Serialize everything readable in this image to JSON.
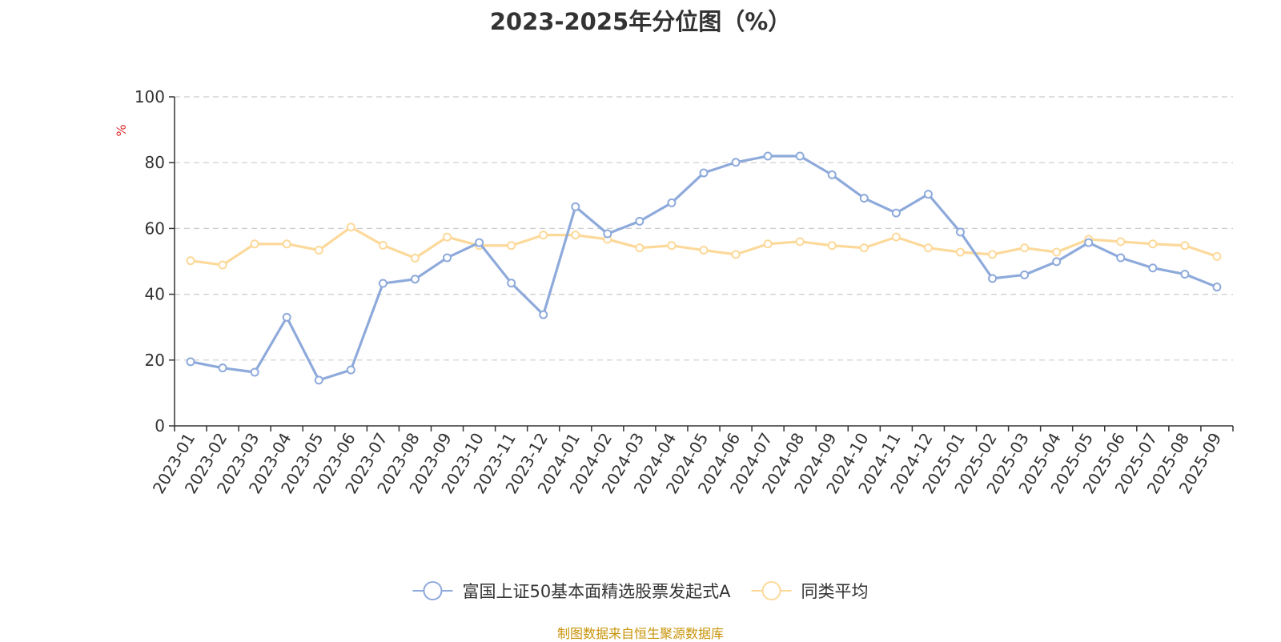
{
  "colors": {
    "series1": "#8eaadb",
    "series2": "#fcd99a",
    "unit": "#e03030",
    "source": "#c8940a",
    "grid": "#cccccc",
    "axis": "#333333"
  },
  "source_note": "制图数据来自恒生聚源数据库",
  "chart_data": {
    "type": "line",
    "title": "2023-2025年分位图（%）",
    "ylabel": "%",
    "xlabel": "",
    "ylim": [
      0,
      100
    ],
    "yticks": [
      0,
      20,
      40,
      60,
      80,
      100
    ],
    "grid": true,
    "legend_position": "bottom",
    "categories": [
      "2023-01",
      "2023-02",
      "2023-03",
      "2023-04",
      "2023-05",
      "2023-06",
      "2023-07",
      "2023-08",
      "2023-09",
      "2023-10",
      "2023-11",
      "2023-12",
      "2024-01",
      "2024-02",
      "2024-03",
      "2024-04",
      "2024-05",
      "2024-06",
      "2024-07",
      "2024-08",
      "2024-09",
      "2024-10",
      "2024-11",
      "2024-12",
      "2025-01",
      "2025-02",
      "2025-03",
      "2025-04",
      "2025-05",
      "2025-06",
      "2025-07",
      "2025-08",
      "2025-09"
    ],
    "series": [
      {
        "name": "富国上证50基本面精选股票发起式A",
        "color": "#8eaadb",
        "values": [
          19.5,
          17.6,
          16.3,
          33.0,
          13.9,
          17.0,
          43.3,
          44.6,
          51.1,
          55.7,
          43.4,
          33.8,
          66.6,
          58.4,
          62.2,
          67.8,
          76.9,
          80.1,
          82.0,
          82.0,
          76.3,
          69.2,
          64.7,
          70.4,
          58.9,
          44.8,
          45.9,
          49.9,
          55.7,
          51.1,
          48.0,
          46.1,
          42.2
        ]
      },
      {
        "name": "同类平均",
        "color": "#fcd99a",
        "values": [
          50.2,
          48.9,
          55.3,
          55.3,
          53.4,
          60.4,
          54.9,
          51.0,
          57.4,
          54.8,
          54.8,
          58.0,
          58.0,
          56.7,
          54.1,
          54.8,
          53.4,
          52.1,
          55.3,
          56.0,
          54.8,
          54.1,
          57.4,
          54.1,
          52.8,
          52.1,
          54.1,
          52.8,
          56.7,
          56.0,
          55.3,
          54.8,
          51.5
        ]
      }
    ]
  }
}
